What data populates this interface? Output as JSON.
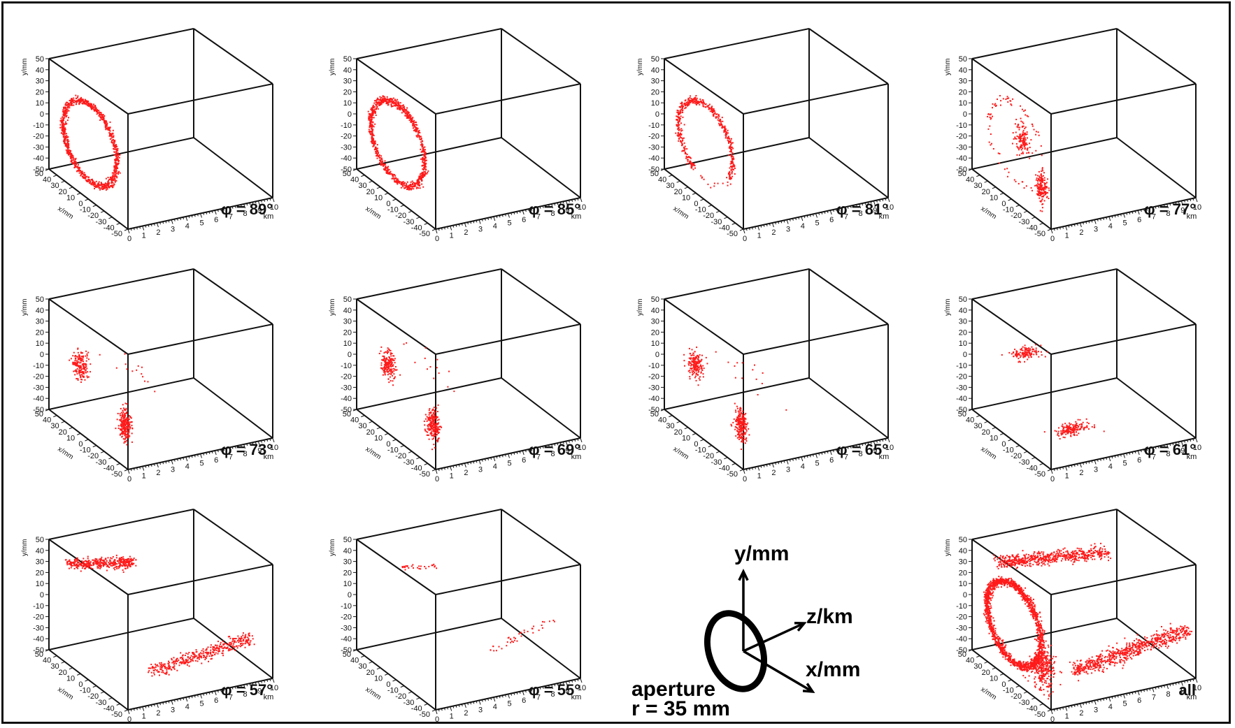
{
  "figure": {
    "frame_color": "#111111",
    "point_color": "#ff1a1a",
    "axis_color": "#111111"
  },
  "axes_labels": {
    "y": "y/mm",
    "x": "x/mm",
    "z": "km"
  },
  "ticks": {
    "y": [
      "50",
      "40",
      "30",
      "20",
      "10",
      "0",
      "-10",
      "-20",
      "-30",
      "-40",
      "-50"
    ],
    "x": [
      "50",
      "40",
      "30",
      "20",
      "10",
      "0",
      "-10",
      "-20",
      "-30",
      "-40",
      "-50"
    ],
    "z": [
      "0",
      "1",
      "2",
      "3",
      "4",
      "5",
      "6",
      "7",
      "8",
      "9",
      "10"
    ]
  },
  "diagram": {
    "y_label": "y/mm",
    "z_label": "z/km",
    "x_label": "x/mm",
    "aperture_line1": "aperture",
    "aperture_line2": "r = 35 mm"
  },
  "chart_data": [
    {
      "type": "scatter",
      "label": "φ = 89°",
      "pattern": "ring",
      "xlim": [
        -50,
        50
      ],
      "ylim": [
        -50,
        50
      ],
      "zlim": [
        0,
        10
      ],
      "units": {
        "x": "mm",
        "y": "mm",
        "z": "km"
      }
    },
    {
      "type": "scatter",
      "label": "φ = 85°",
      "pattern": "ring",
      "xlim": [
        -50,
        50
      ],
      "ylim": [
        -50,
        50
      ],
      "zlim": [
        0,
        10
      ],
      "units": {
        "x": "mm",
        "y": "mm",
        "z": "km"
      }
    },
    {
      "type": "scatter",
      "label": "φ = 81°",
      "pattern": "ring-partial",
      "xlim": [
        -50,
        50
      ],
      "ylim": [
        -50,
        50
      ],
      "zlim": [
        0,
        10
      ],
      "units": {
        "x": "mm",
        "y": "mm",
        "z": "km"
      }
    },
    {
      "type": "scatter",
      "label": "φ = 77°",
      "pattern": "ring-sparse",
      "xlim": [
        -50,
        50
      ],
      "ylim": [
        -50,
        50
      ],
      "zlim": [
        0,
        10
      ],
      "units": {
        "x": "mm",
        "y": "mm",
        "z": "km"
      }
    },
    {
      "type": "scatter",
      "label": "φ = 73°",
      "pattern": "two-clusters",
      "xlim": [
        -50,
        50
      ],
      "ylim": [
        -50,
        50
      ],
      "zlim": [
        0,
        10
      ],
      "units": {
        "x": "mm",
        "y": "mm",
        "z": "km"
      }
    },
    {
      "type": "scatter",
      "label": "φ = 69°",
      "pattern": "two-clusters",
      "xlim": [
        -50,
        50
      ],
      "ylim": [
        -50,
        50
      ],
      "zlim": [
        0,
        10
      ],
      "units": {
        "x": "mm",
        "y": "mm",
        "z": "km"
      }
    },
    {
      "type": "scatter",
      "label": "φ = 65°",
      "pattern": "two-clusters",
      "xlim": [
        -50,
        50
      ],
      "ylim": [
        -50,
        50
      ],
      "zlim": [
        0,
        10
      ],
      "units": {
        "x": "mm",
        "y": "mm",
        "z": "km"
      }
    },
    {
      "type": "scatter",
      "label": "φ = 61°",
      "pattern": "two-blobs-horizontal",
      "xlim": [
        -50,
        50
      ],
      "ylim": [
        -50,
        50
      ],
      "zlim": [
        0,
        10
      ],
      "units": {
        "x": "mm",
        "y": "mm",
        "z": "km"
      }
    },
    {
      "type": "scatter",
      "label": "φ = 57°",
      "pattern": "two-streaks",
      "xlim": [
        -50,
        50
      ],
      "ylim": [
        -50,
        50
      ],
      "zlim": [
        0,
        10
      ],
      "units": {
        "x": "mm",
        "y": "mm",
        "z": "km"
      }
    },
    {
      "type": "scatter",
      "label": "φ = 55°",
      "pattern": "sparse-streaks",
      "xlim": [
        -50,
        50
      ],
      "ylim": [
        -50,
        50
      ],
      "zlim": [
        0,
        10
      ],
      "units": {
        "x": "mm",
        "y": "mm",
        "z": "km"
      }
    },
    {
      "type": "scatter",
      "label": "all",
      "pattern": "combined",
      "xlim": [
        -50,
        50
      ],
      "ylim": [
        -50,
        50
      ],
      "zlim": [
        0,
        10
      ],
      "units": {
        "x": "mm",
        "y": "mm",
        "z": "km"
      }
    }
  ]
}
